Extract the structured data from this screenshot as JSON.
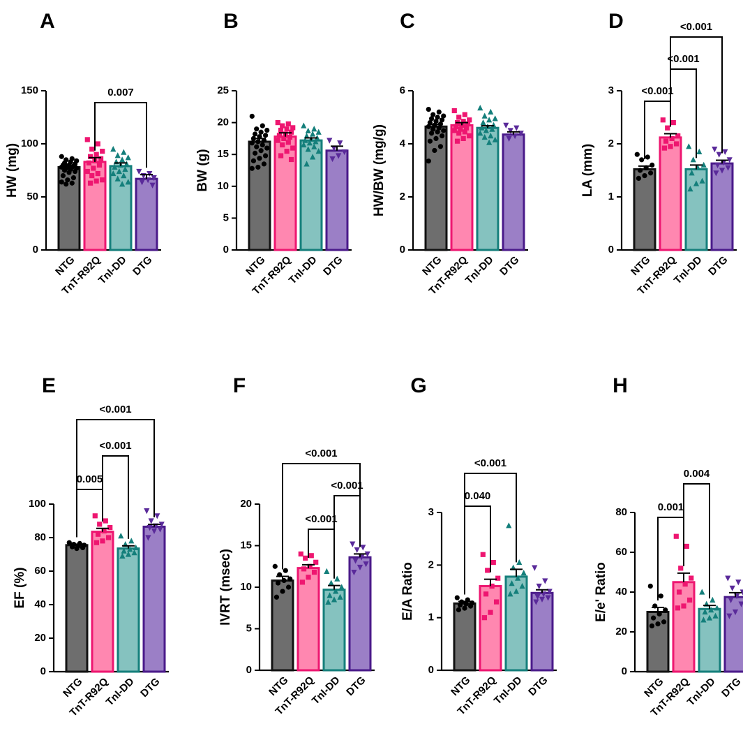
{
  "figure": {
    "categories": [
      "NTG",
      "TnT-R92Q",
      "TnI-DD",
      "DTG"
    ],
    "group_colors": [
      {
        "name": "NTG",
        "fill": "#6e6e6e",
        "edge": "#111111",
        "dot": "#000000",
        "marker": "circle"
      },
      {
        "name": "TnT-R92Q",
        "fill": "#ff87b0",
        "edge": "#ee1670",
        "dot": "#ee1670",
        "marker": "square"
      },
      {
        "name": "TnI-DD",
        "fill": "#85c2bf",
        "edge": "#147f7b",
        "dot": "#147f7b",
        "marker": "triangle"
      },
      {
        "name": "DTG",
        "fill": "#9b7fc6",
        "edge": "#4a1a8a",
        "dot": "#5a2a9a",
        "marker": "triangle-down"
      }
    ]
  },
  "chart_data": [
    {
      "panel": "A",
      "type": "bar",
      "ylabel": "HW (mg)",
      "categories": [
        "NTG",
        "TnT-R92Q",
        "TnI-DD",
        "DTG"
      ],
      "values": [
        78,
        83,
        79,
        67
      ],
      "errors": [
        2,
        4,
        3,
        4
      ],
      "ylim": [
        0,
        150
      ],
      "yticks": [
        0,
        50,
        100,
        150
      ],
      "points": [
        [
          88,
          86,
          85,
          84,
          83,
          82,
          81,
          80,
          80,
          79,
          79,
          78,
          78,
          77,
          77,
          76,
          75,
          74,
          73,
          70,
          68,
          66,
          64,
          63,
          62
        ],
        [
          104,
          100,
          95,
          93,
          90,
          88,
          86,
          84,
          82,
          80,
          77,
          74,
          72,
          70,
          66,
          65,
          63
        ],
        [
          95,
          92,
          89,
          87,
          85,
          83,
          81,
          80,
          78,
          76,
          74,
          72,
          70,
          67,
          64,
          62
        ],
        [
          74,
          72,
          70,
          68,
          66,
          64,
          61
        ]
      ],
      "comparisons": [
        {
          "from": 1,
          "to": 3,
          "label": "0.007"
        }
      ]
    },
    {
      "panel": "B",
      "type": "bar",
      "ylabel": "BW (g)",
      "categories": [
        "NTG",
        "TnT-R92Q",
        "TnI-DD",
        "DTG"
      ],
      "values": [
        17,
        17.8,
        17.2,
        15.6
      ],
      "errors": [
        0.5,
        0.6,
        0.4,
        0.7
      ],
      "ylim": [
        0,
        25
      ],
      "yticks": [
        0,
        5,
        10,
        15,
        20,
        25
      ],
      "points": [
        [
          21,
          19.5,
          19,
          18.8,
          18.5,
          18.2,
          18,
          17.8,
          17.5,
          17.2,
          17,
          16.8,
          16.5,
          16.2,
          16,
          15.6,
          15.2,
          14.8,
          14.4,
          14,
          13.5,
          13,
          12.8
        ],
        [
          20,
          19.8,
          19.5,
          19.2,
          19,
          18.8,
          18.5,
          18.2,
          18,
          17.7,
          17.5,
          17.2,
          16.9,
          16.5,
          16,
          15.5,
          14.8,
          14.2
        ],
        [
          19.5,
          19,
          18.7,
          18.5,
          18.2,
          17.9,
          17.6,
          17.4,
          17.2,
          17,
          16.8,
          16.5,
          16.2,
          15.8,
          15.5,
          14.6,
          13.5
        ],
        [
          17.2,
          16.8,
          16,
          15.4,
          14.8,
          14.3
        ]
      ],
      "comparisons": []
    },
    {
      "panel": "C",
      "type": "bar",
      "ylabel": "HW/BW (mg/g)",
      "categories": [
        "NTG",
        "TnT-R92Q",
        "TnI-DD",
        "DTG"
      ],
      "values": [
        4.65,
        4.7,
        4.6,
        4.35
      ],
      "errors": [
        0.08,
        0.1,
        0.08,
        0.1
      ],
      "ylim": [
        0,
        6
      ],
      "yticks": [
        0,
        2,
        4,
        6
      ],
      "points": [
        [
          5.3,
          5.2,
          5.1,
          5.05,
          5,
          4.95,
          4.9,
          4.85,
          4.8,
          4.75,
          4.7,
          4.65,
          4.6,
          4.55,
          4.5,
          4.45,
          4.4,
          4.3,
          4.2,
          4.1,
          3.9,
          3.75,
          3.35
        ],
        [
          5.25,
          5.1,
          5.0,
          4.9,
          4.85,
          4.8,
          4.75,
          4.7,
          4.65,
          4.6,
          4.55,
          4.5,
          4.45,
          4.4,
          4.3,
          4.2,
          4.1
        ],
        [
          5.35,
          5.2,
          5.05,
          4.95,
          4.9,
          4.8,
          4.7,
          4.65,
          4.6,
          4.55,
          4.5,
          4.4,
          4.3,
          4.25,
          4.15,
          4.05
        ],
        [
          4.7,
          4.6,
          4.5,
          4.4,
          4.3,
          4.2
        ]
      ],
      "comparisons": []
    },
    {
      "panel": "D",
      "type": "bar",
      "ylabel": "LA (mm)",
      "categories": [
        "NTG",
        "TnT-R92Q",
        "TnI-DD",
        "DTG"
      ],
      "values": [
        1.52,
        2.12,
        1.52,
        1.63
      ],
      "errors": [
        0.06,
        0.07,
        0.08,
        0.06
      ],
      "ylim": [
        0,
        3
      ],
      "yticks": [
        0,
        1,
        2,
        3
      ],
      "points": [
        [
          1.8,
          1.75,
          1.7,
          1.6,
          1.55,
          1.5,
          1.45,
          1.4,
          1.35
        ],
        [
          2.45,
          2.4,
          2.3,
          2.15,
          2.1,
          2.05,
          2.0,
          1.95,
          1.92
        ],
        [
          1.95,
          1.85,
          1.7,
          1.6,
          1.55,
          1.45,
          1.3,
          1.25,
          1.15
        ],
        [
          1.9,
          1.85,
          1.8,
          1.7,
          1.65,
          1.6,
          1.55,
          1.5,
          1.45
        ]
      ],
      "comparisons": [
        {
          "from": 0,
          "to": 1,
          "label": "<0.001"
        },
        {
          "from": 1,
          "to": 2,
          "label": "<0.001"
        },
        {
          "from": 1,
          "to": 3,
          "label": "<0.001"
        }
      ]
    },
    {
      "panel": "E",
      "type": "bar",
      "ylabel": "EF (%)",
      "categories": [
        "NTG",
        "TnT-R92Q",
        "TnI-DD",
        "DTG"
      ],
      "values": [
        75.5,
        83.5,
        73.5,
        86.5
      ],
      "errors": [
        0.6,
        2.0,
        1.6,
        1.4
      ],
      "ylim": [
        0,
        100
      ],
      "yticks": [
        0,
        20,
        40,
        60,
        80,
        100
      ],
      "points": [
        [
          77,
          76.5,
          76,
          75.5,
          75,
          74.5,
          74,
          73.5
        ],
        [
          93,
          90,
          88,
          86,
          84,
          82,
          80,
          78,
          77
        ],
        [
          81,
          78,
          76,
          74,
          73,
          72,
          71,
          70,
          69
        ],
        [
          96,
          93,
          90,
          88,
          87,
          86,
          85,
          84,
          80
        ]
      ],
      "comparisons": [
        {
          "from": 0,
          "to": 1,
          "label": "0.005"
        },
        {
          "from": 1,
          "to": 2,
          "label": "<0.001"
        },
        {
          "from": 0,
          "to": 3,
          "label": "<0.001"
        }
      ]
    },
    {
      "panel": "F",
      "type": "bar",
      "ylabel": "IVRT (msec)",
      "categories": [
        "NTG",
        "TnT-R92Q",
        "TnI-DD",
        "DTG"
      ],
      "values": [
        10.8,
        12.3,
        9.7,
        13.6
      ],
      "errors": [
        0.5,
        0.4,
        0.5,
        0.4
      ],
      "ylim": [
        0,
        20
      ],
      "yticks": [
        0,
        5,
        10,
        15,
        20
      ],
      "points": [
        [
          12.5,
          12,
          11.5,
          11,
          10.8,
          10.5,
          10,
          9.5,
          8.8
        ],
        [
          14,
          13.8,
          13.5,
          13,
          12.5,
          12.2,
          11.8,
          11.2,
          10.6
        ],
        [
          11.9,
          11,
          10.5,
          10,
          9.5,
          9,
          8.8,
          8.5,
          8.2
        ],
        [
          15.2,
          14.8,
          14.5,
          14,
          13.6,
          13.2,
          12.8,
          12.4,
          11.8
        ]
      ],
      "comparisons": [
        {
          "from": 1,
          "to": 2,
          "label": "<0.001"
        },
        {
          "from": 2,
          "to": 3,
          "label": "<0.001"
        },
        {
          "from": 0,
          "to": 3,
          "label": "<0.001"
        }
      ]
    },
    {
      "panel": "G",
      "type": "bar",
      "ylabel": "E/A Ratio",
      "categories": [
        "NTG",
        "TnT-R92Q",
        "TnI-DD",
        "DTG"
      ],
      "values": [
        1.27,
        1.6,
        1.78,
        1.47
      ],
      "errors": [
        0.04,
        0.13,
        0.14,
        0.06
      ],
      "ylim": [
        0,
        3
      ],
      "yticks": [
        0,
        1,
        2,
        3
      ],
      "points": [
        [
          1.38,
          1.34,
          1.3,
          1.28,
          1.26,
          1.24,
          1.22,
          1.18,
          1.15
        ],
        [
          2.2,
          2.05,
          1.9,
          1.75,
          1.6,
          1.45,
          1.3,
          1.1,
          1.0
        ],
        [
          2.75,
          2.05,
          1.95,
          1.85,
          1.75,
          1.65,
          1.6,
          1.5,
          1.45
        ],
        [
          1.95,
          1.7,
          1.6,
          1.5,
          1.45,
          1.4,
          1.38,
          1.35,
          1.3
        ]
      ],
      "comparisons": [
        {
          "from": 0,
          "to": 1,
          "label": "0.040"
        },
        {
          "from": 0,
          "to": 2,
          "label": "<0.001"
        }
      ]
    },
    {
      "panel": "H",
      "type": "bar",
      "ylabel": "E/e' Ratio",
      "categories": [
        "NTG",
        "TnT-R92Q",
        "TnI-DD",
        "DTG"
      ],
      "values": [
        30,
        45,
        31.5,
        37.5
      ],
      "errors": [
        2.3,
        4.5,
        1.8,
        2.2
      ],
      "ylim": [
        0,
        80
      ],
      "yticks": [
        0,
        20,
        40,
        60,
        80
      ],
      "points": [
        [
          43,
          38,
          33,
          31,
          29,
          27,
          25,
          24,
          23
        ],
        [
          68,
          63,
          52,
          47,
          44,
          40,
          36,
          33,
          32
        ],
        [
          40,
          36,
          34,
          32,
          31,
          30,
          28,
          27,
          26
        ],
        [
          47,
          45,
          42,
          40,
          38,
          36,
          34,
          30,
          28
        ]
      ],
      "comparisons": [
        {
          "from": 0,
          "to": 1,
          "label": "0.001"
        },
        {
          "from": 1,
          "to": 2,
          "label": "0.004"
        }
      ]
    }
  ]
}
